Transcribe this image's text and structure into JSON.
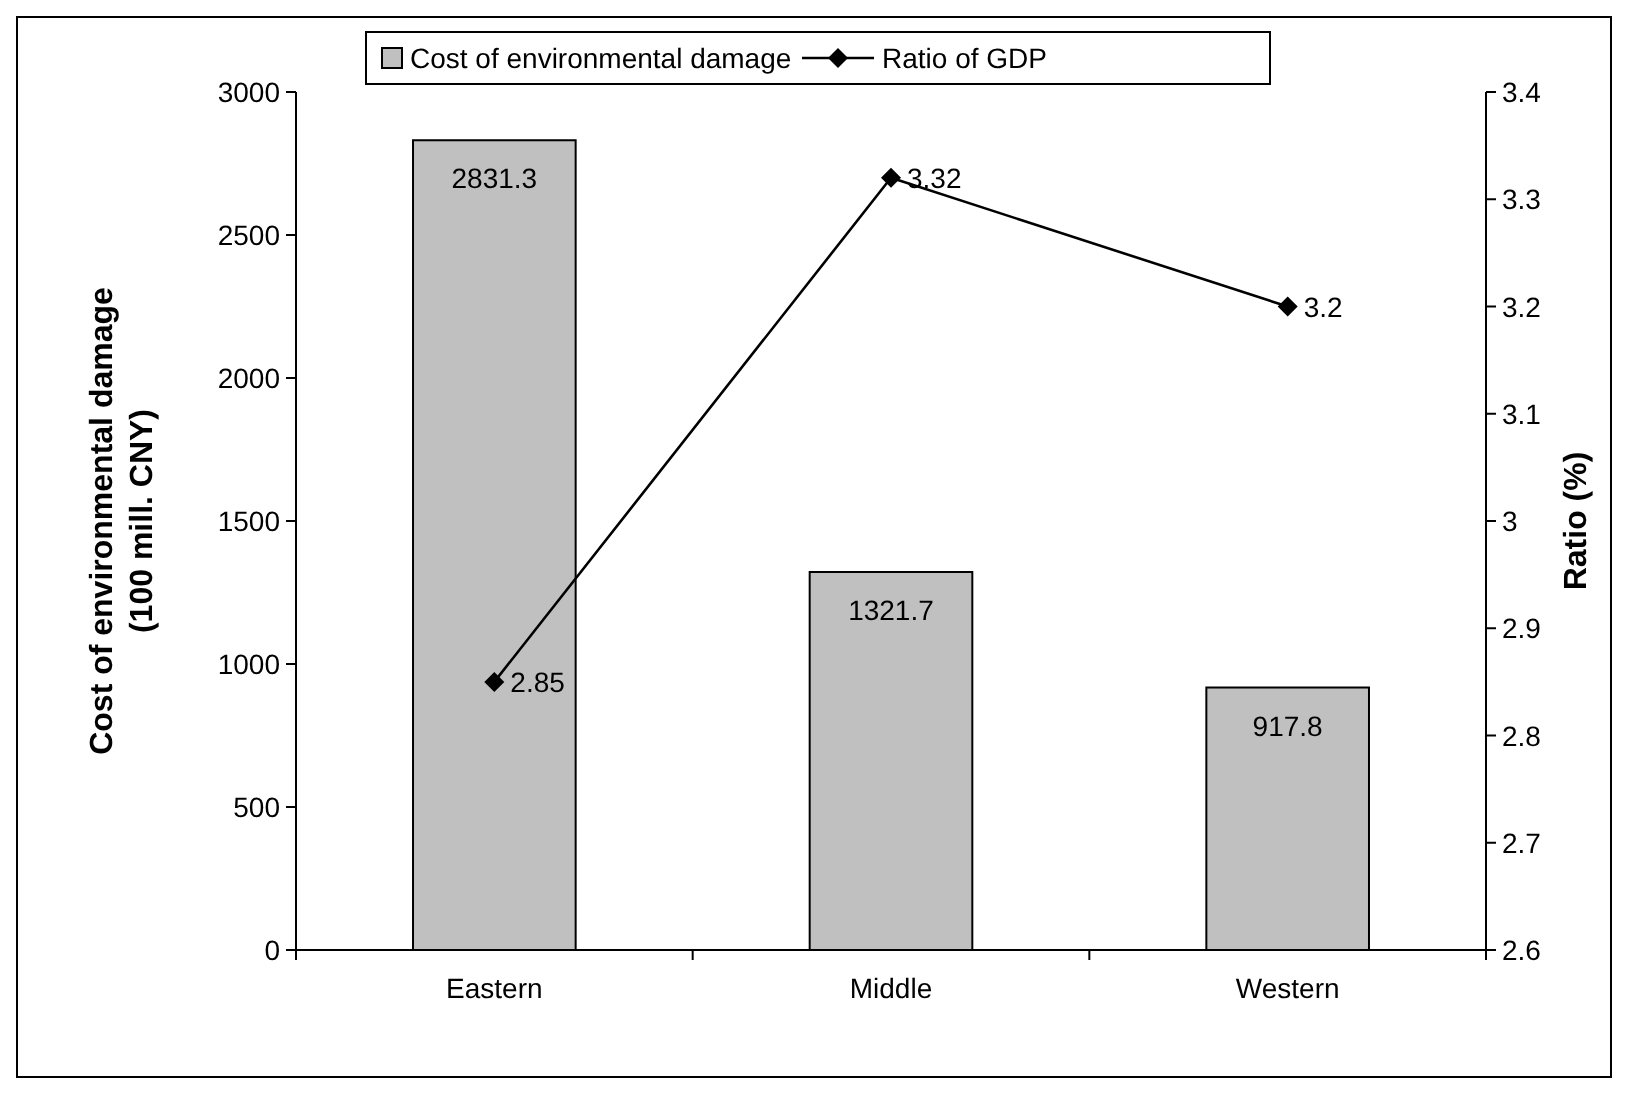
{
  "chart_data": {
    "type": "bar",
    "categories": [
      "Eastern",
      "Middle",
      "Western"
    ],
    "series": [
      {
        "name": "Cost of environmental damage",
        "color": "#c0c0c0",
        "values": [
          2831.3,
          1321.7,
          917.8
        ]
      },
      {
        "name": "Ratio of GDP",
        "type": "line",
        "axis": "y2",
        "color": "#000000",
        "values": [
          2.85,
          3.32,
          3.2
        ],
        "marker": "diamond"
      }
    ],
    "ylabel": "Cost of environmental damage\n(100 mill. CNY)",
    "y2label": "Ratio (%)",
    "ylim": [
      0,
      3000
    ],
    "yticks": [
      0,
      500,
      1000,
      1500,
      2000,
      2500,
      3000
    ],
    "y2lim": [
      2.6,
      3.4
    ],
    "y2ticks": [
      2.6,
      2.7,
      2.8,
      2.9,
      3,
      3.1,
      3.2,
      3.3,
      3.4
    ],
    "data_labels": true,
    "legend": "top",
    "grid": false
  }
}
